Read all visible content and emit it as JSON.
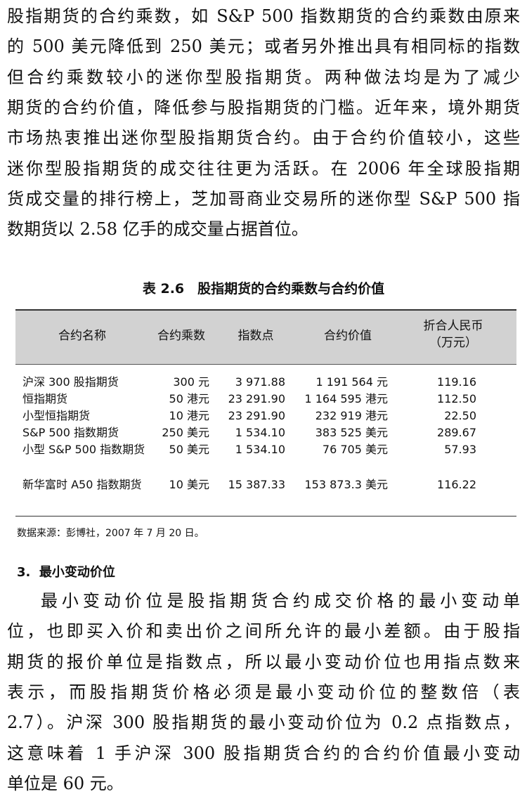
{
  "paragraph_1": {
    "lines": [
      "股指期货的合约乘数，如 S&P 500 指数期货的合约乘数由原来",
      "的 500 美元降低到 250 美元；或者另外推出具有相同标的指数",
      "但合约乘数较小的迷你型股指期货。两种做法均是为了减少",
      "期货的合约价值，降低参与股指期货的门槛。近年来，境外期货",
      "市场热衷推出迷你型股指期货合约。由于合约价值较小，这些",
      "迷你型股指期货的成交往往更为活跃。在 2006 年全球股指期",
      "货成交量的排行榜上，芝加哥商业交易所的迷你型 S&P 500 指",
      "数期货以 2.58 亿手的成交量占据首位。"
    ]
  },
  "table": {
    "caption": "表 2.6　股指期货的合约乘数与合约价值",
    "header": [
      "合约名称",
      "合约乘数",
      "指数点",
      "合约价值",
      "折合人民币（万元）"
    ],
    "rows": [
      [
        "沪深 300 股指期货",
        "300 元",
        "3 971.88",
        "1 191 564 元",
        "119.16"
      ],
      [
        "恒指期货",
        "50 港元",
        "23 291.90",
        "1 164 595 港元",
        "112.50"
      ],
      [
        "小型恒指期货",
        "10 港元",
        "23 291.90",
        "232 919 港元",
        "22.50"
      ],
      [
        "S&P 500 指数期货",
        "250 美元",
        "1 534.10",
        "383 525 美元",
        "289.67"
      ],
      [
        "小型 S&P 500 指数期货",
        "50 美元",
        "1 534.10",
        "76 705 美元",
        "57.93"
      ],
      [
        "新华富时 A50 指数期货",
        "10 美元",
        "15 387.33",
        "153 873.3 美元",
        "116.22"
      ]
    ],
    "source": "数据来源：彭博社，2007 年 7 月 20 日。"
  },
  "section": {
    "heading": "3.  最小变动价位"
  },
  "paragraph_2": {
    "lines": [
      "最小变动价位是股指期货合约成交价格的最小变动单",
      "位，也即买入价和卖出价之间所允许的最小差额。由于股指",
      "期货的报价单位是指数点，所以最小变动价位也用指点数来",
      "表示，而股指期货价格必须是最小变动价位的整数倍（表",
      "2.7）。沪深 300 股指期货的最小变动价位为 0.2 点指数点，",
      "这意味着 1 手沪深 300 股指期货合约的合约价值最小变动",
      "单位是 60 元。"
    ]
  }
}
